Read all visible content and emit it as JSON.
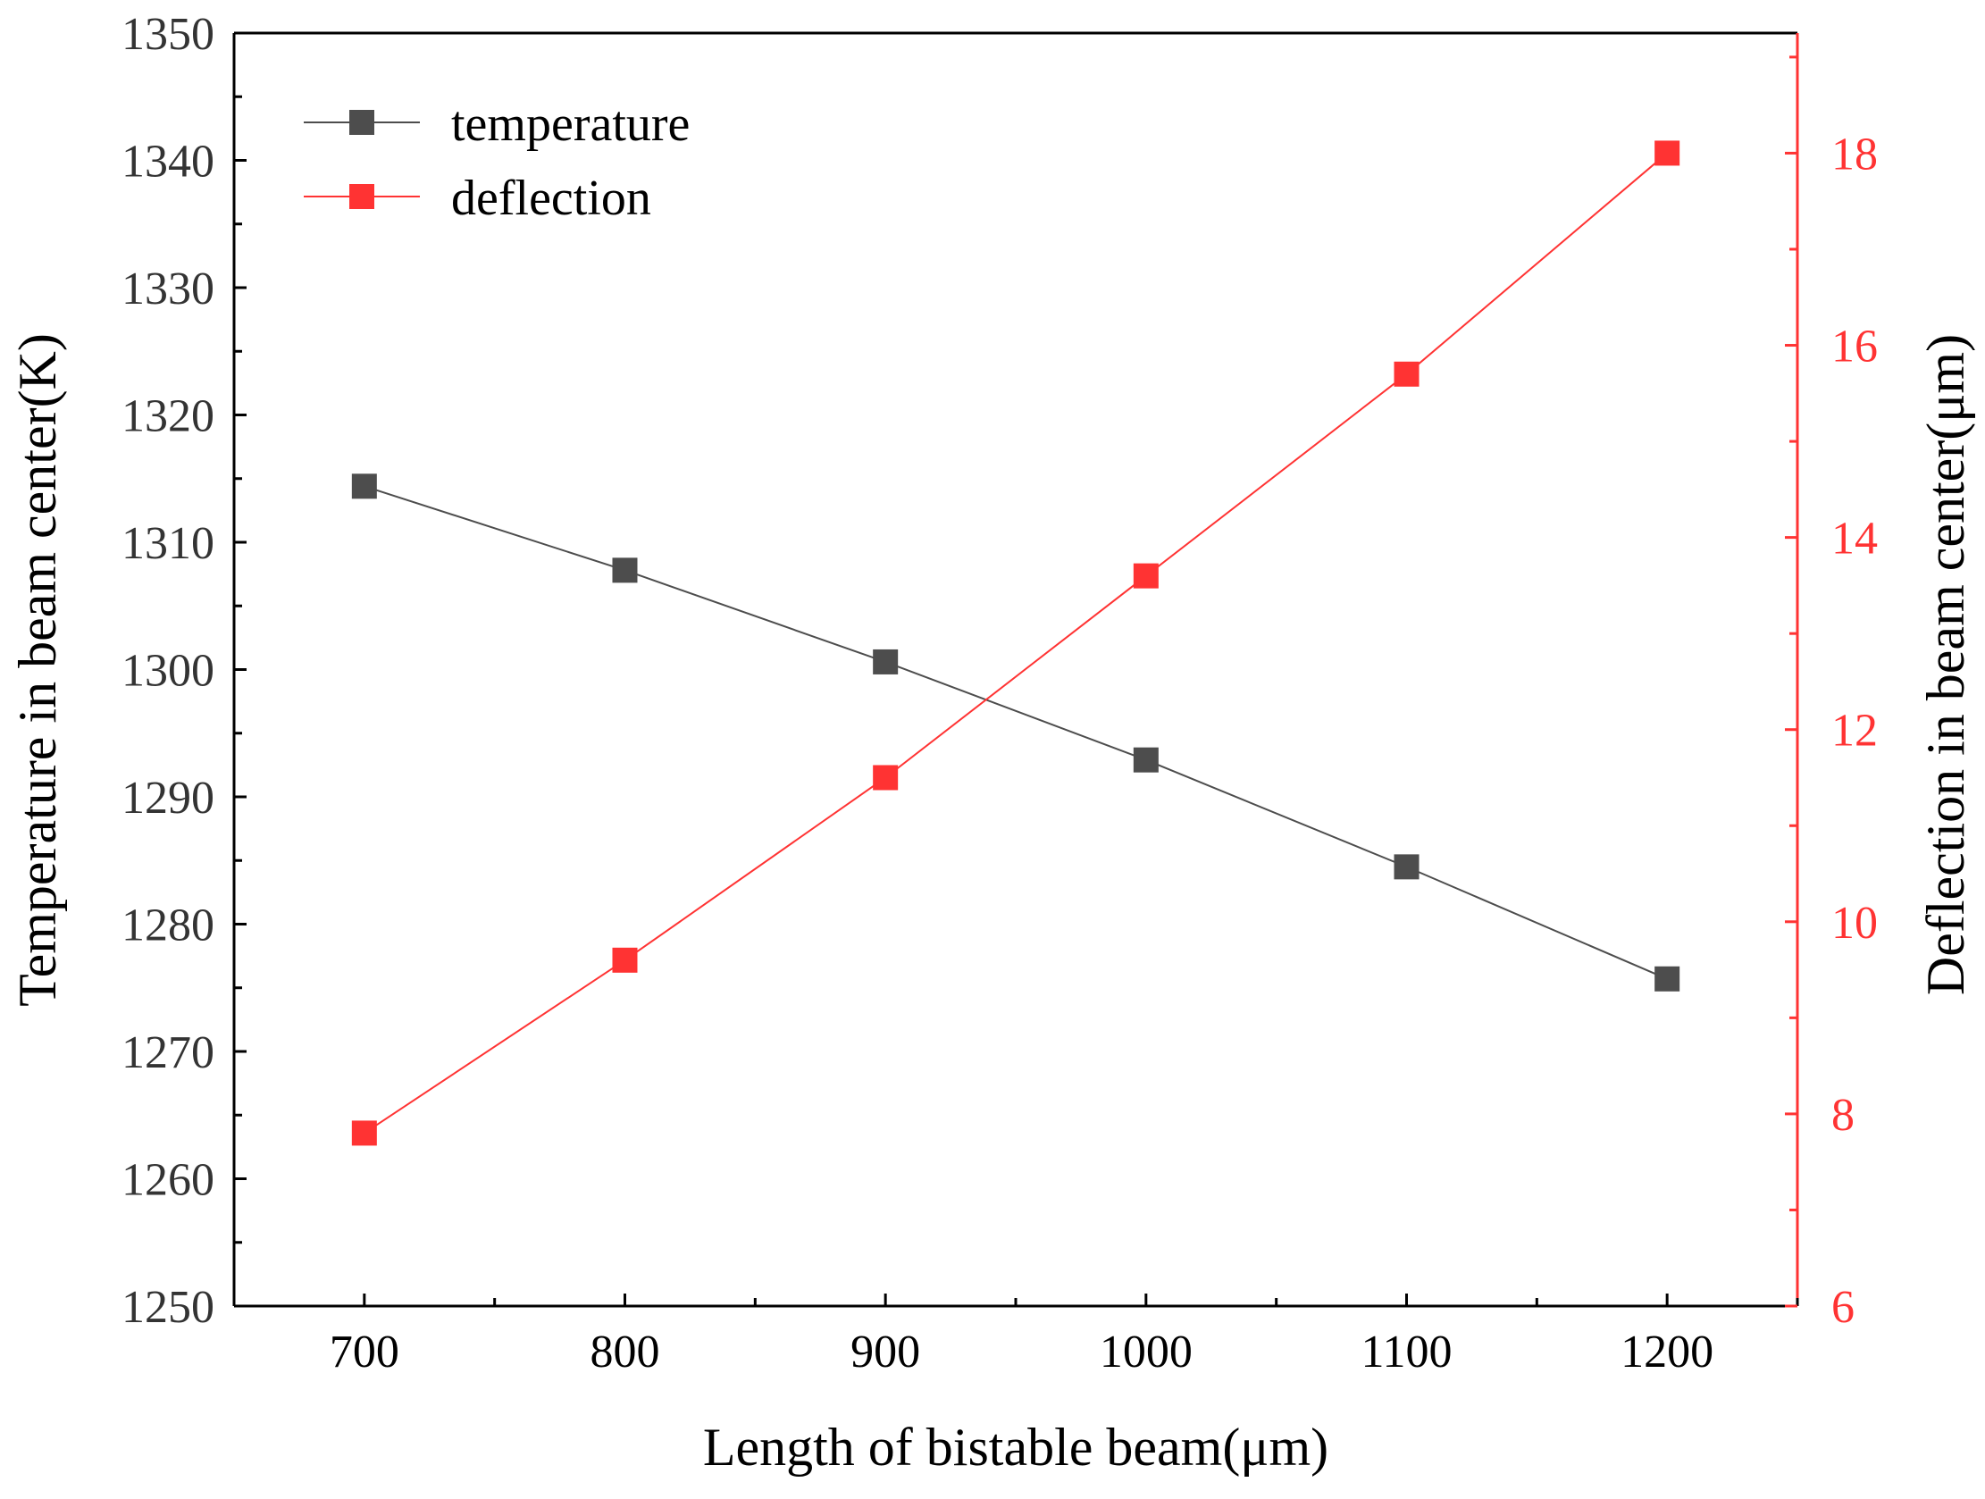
{
  "chart_data": {
    "type": "line",
    "xlabel": "Length of bistable beam(μm)",
    "ylabel_left": "Temperature in beam center(K)",
    "ylabel_right": "Deflection in beam center(μm)",
    "xlim": [
      650,
      1250
    ],
    "x_ticks": [
      700,
      800,
      900,
      1000,
      1100,
      1200
    ],
    "ylim_left": [
      1250,
      1350
    ],
    "y_ticks_left": [
      1250,
      1260,
      1270,
      1280,
      1290,
      1300,
      1310,
      1320,
      1330,
      1340,
      1350
    ],
    "ylim_right": [
      6,
      19.25
    ],
    "y_ticks_right": [
      6,
      8,
      10,
      12,
      14,
      16,
      18
    ],
    "legend_position": "top-left",
    "series": [
      {
        "name": "temperature",
        "axis": "left",
        "color": "#4d4d4d",
        "marker": "square",
        "x": [
          700,
          800,
          900,
          1000,
          1100,
          1200
        ],
        "values": [
          1314.4,
          1307.8,
          1300.6,
          1292.9,
          1284.5,
          1275.7
        ]
      },
      {
        "name": "deflection",
        "axis": "right",
        "color": "#ff3333",
        "marker": "square",
        "x": [
          700,
          800,
          900,
          1000,
          1100,
          1200
        ],
        "values": [
          7.8,
          9.6,
          11.5,
          13.6,
          15.7,
          18.0
        ]
      }
    ]
  },
  "colors": {
    "left_axis": "#000000",
    "right_axis": "#ff3333",
    "left_tick_text": "#333333"
  }
}
